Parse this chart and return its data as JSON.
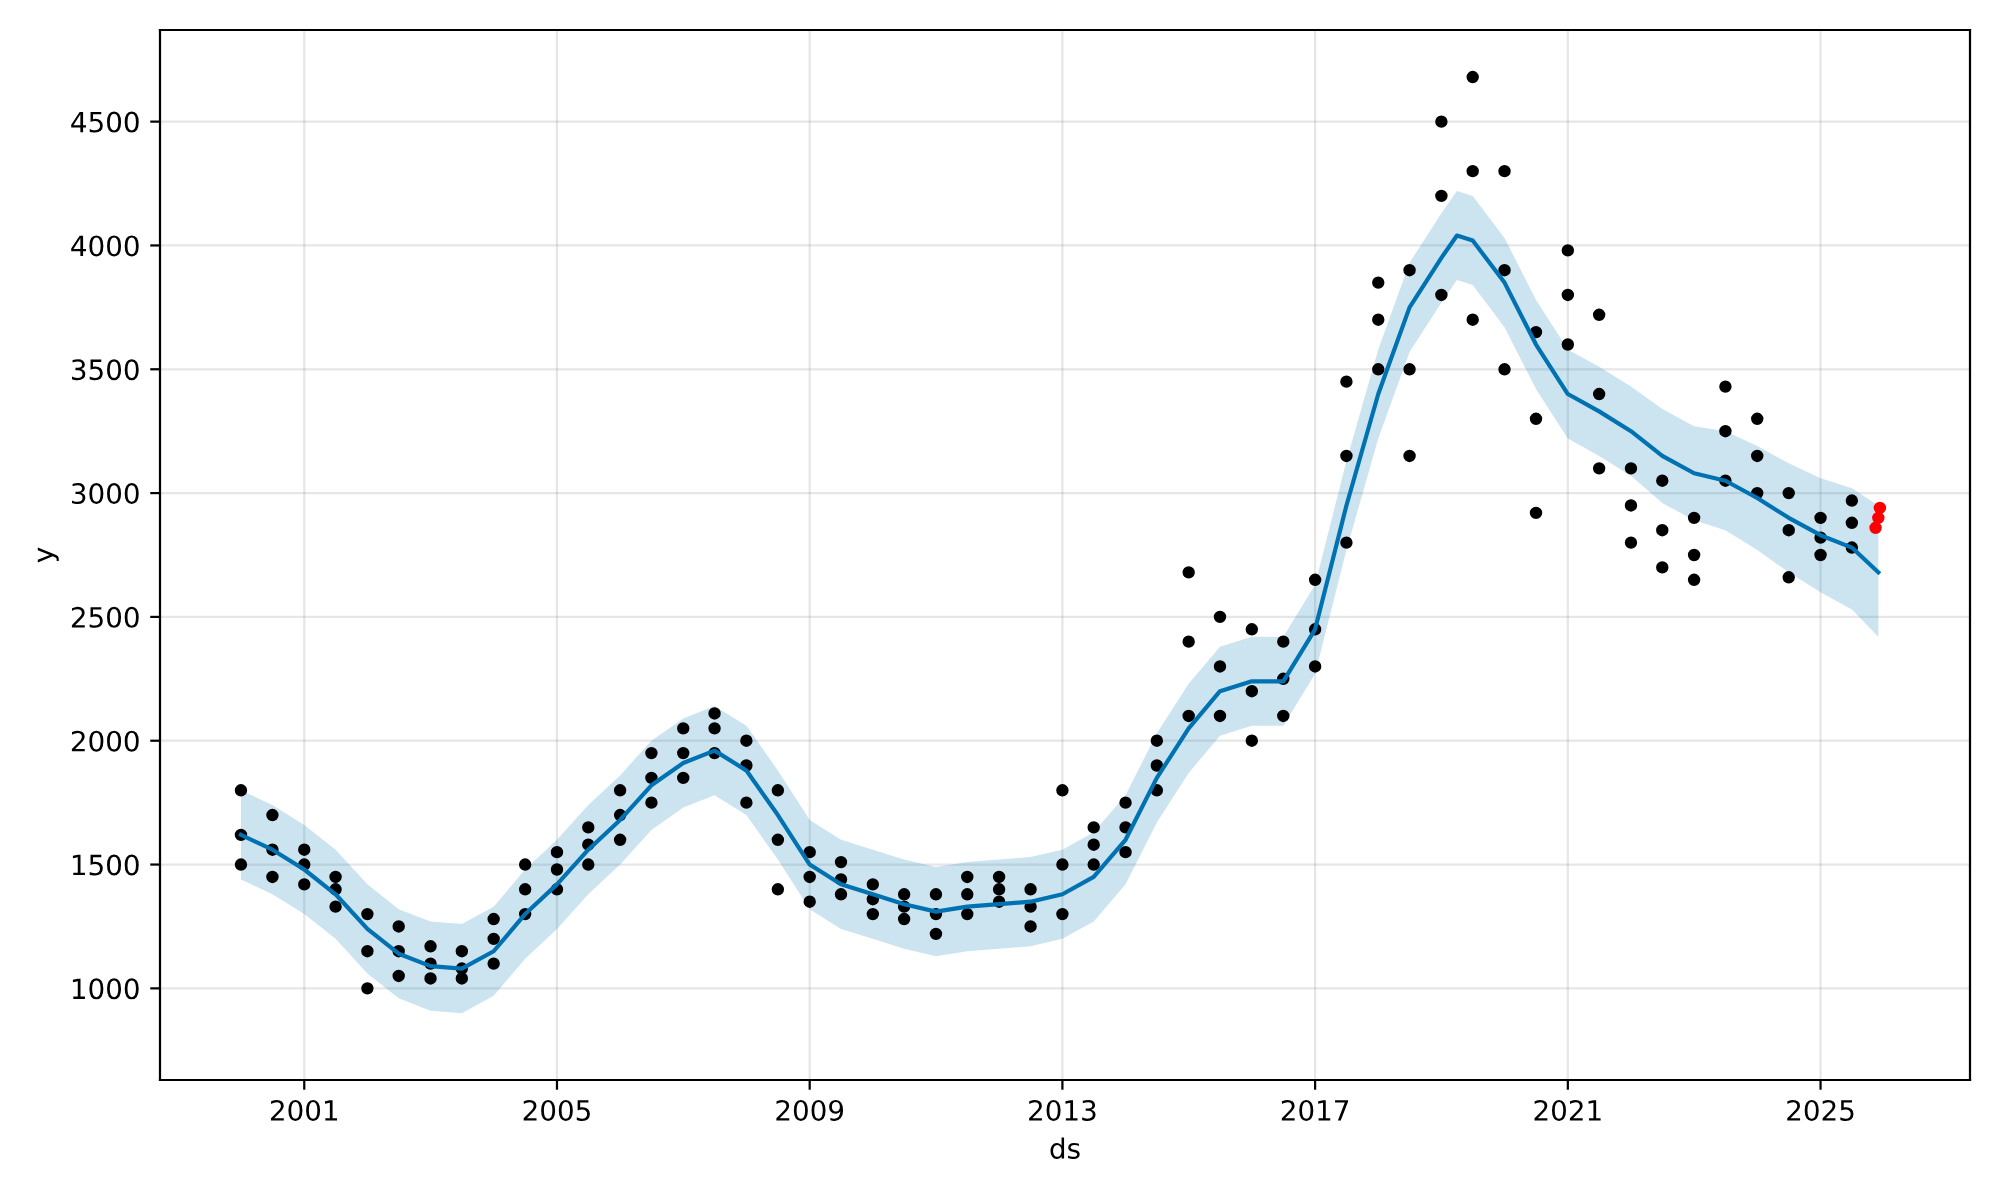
{
  "chart_data": {
    "type": "scatter",
    "xlabel": "ds",
    "ylabel": "y",
    "xlim": [
      "1998-09-20",
      "2027-05-15"
    ],
    "ylim": [
      630,
      4870
    ],
    "xticks": [
      {
        "value": "2001-01-01",
        "label": "2001"
      },
      {
        "value": "2005-01-01",
        "label": "2005"
      },
      {
        "value": "2009-01-01",
        "label": "2009"
      },
      {
        "value": "2013-01-01",
        "label": "2013"
      },
      {
        "value": "2017-01-01",
        "label": "2017"
      },
      {
        "value": "2021-01-01",
        "label": "2021"
      },
      {
        "value": "2025-01-01",
        "label": "2025"
      }
    ],
    "yticks": [
      1000,
      1500,
      2000,
      2500,
      3000,
      3500,
      4000,
      4500
    ],
    "grid": true,
    "legend": false,
    "marker": "circle",
    "series": [
      {
        "color": "#000000",
        "x": [
          "2000-01-01",
          "2000-01-01",
          "2000-01-01",
          "2000-07-01",
          "2000-07-01",
          "2000-07-01",
          "2001-01-01",
          "2001-01-01",
          "2001-01-01",
          "2001-07-01",
          "2001-07-01",
          "2001-07-01",
          "2002-01-01",
          "2002-01-01",
          "2002-01-01",
          "2002-07-01",
          "2002-07-01",
          "2002-07-01",
          "2003-01-01",
          "2003-01-01",
          "2003-01-01",
          "2003-07-01",
          "2003-07-01",
          "2003-07-01",
          "2004-01-01",
          "2004-01-01",
          "2004-01-01",
          "2004-07-01",
          "2004-07-01",
          "2004-07-01",
          "2005-01-01",
          "2005-01-01",
          "2005-01-01",
          "2005-07-01",
          "2005-07-01",
          "2005-07-01",
          "2006-01-01",
          "2006-01-01",
          "2006-01-01",
          "2006-07-01",
          "2006-07-01",
          "2006-07-01",
          "2007-01-01",
          "2007-01-01",
          "2007-01-01",
          "2007-07-01",
          "2007-07-01",
          "2007-07-01",
          "2008-01-01",
          "2008-01-01",
          "2008-01-01",
          "2008-07-01",
          "2008-07-01",
          "2008-07-01",
          "2009-01-01",
          "2009-01-01",
          "2009-01-01",
          "2009-07-01",
          "2009-07-01",
          "2009-07-01",
          "2010-01-01",
          "2010-01-01",
          "2010-01-01",
          "2010-07-01",
          "2010-07-01",
          "2010-07-01",
          "2011-01-01",
          "2011-01-01",
          "2011-01-01",
          "2011-07-01",
          "2011-07-01",
          "2011-07-01",
          "2012-01-01",
          "2012-01-01",
          "2012-01-01",
          "2012-07-01",
          "2012-07-01",
          "2012-07-01",
          "2013-01-01",
          "2013-01-01",
          "2013-01-01",
          "2013-07-01",
          "2013-07-01",
          "2013-07-01",
          "2014-01-01",
          "2014-01-01",
          "2014-01-01",
          "2014-07-01",
          "2014-07-01",
          "2014-07-01",
          "2015-01-01",
          "2015-01-01",
          "2015-01-01",
          "2015-07-01",
          "2015-07-01",
          "2015-07-01",
          "2016-01-01",
          "2016-01-01",
          "2016-01-01",
          "2016-07-01",
          "2016-07-01",
          "2016-07-01",
          "2017-01-01",
          "2017-01-01",
          "2017-01-01",
          "2017-07-01",
          "2017-07-01",
          "2017-07-01",
          "2018-01-01",
          "2018-01-01",
          "2018-01-01",
          "2018-07-01",
          "2018-07-01",
          "2018-07-01",
          "2019-01-01",
          "2019-01-01",
          "2019-01-01",
          "2019-07-01",
          "2019-07-01",
          "2019-07-01",
          "2020-01-01",
          "2020-01-01",
          "2020-01-01",
          "2020-07-01",
          "2020-07-01",
          "2020-07-01",
          "2021-01-01",
          "2021-01-01",
          "2021-01-01",
          "2021-07-01",
          "2021-07-01",
          "2021-07-01",
          "2022-01-01",
          "2022-01-01",
          "2022-01-01",
          "2022-07-01",
          "2022-07-01",
          "2022-07-01",
          "2023-01-01",
          "2023-01-01",
          "2023-01-01",
          "2023-07-01",
          "2023-07-01",
          "2023-07-01",
          "2024-01-01",
          "2024-01-01",
          "2024-01-01",
          "2024-07-01",
          "2024-07-01",
          "2024-07-01",
          "2025-01-01",
          "2025-01-01",
          "2025-01-01",
          "2025-07-01",
          "2025-07-01",
          "2025-07-01"
        ],
        "values": [
          1500,
          1620,
          1800,
          1450,
          1560,
          1700,
          1420,
          1500,
          1560,
          1330,
          1400,
          1450,
          1000,
          1150,
          1300,
          1050,
          1150,
          1250,
          1040,
          1100,
          1170,
          1040,
          1080,
          1150,
          1100,
          1200,
          1280,
          1300,
          1400,
          1500,
          1400,
          1480,
          1550,
          1500,
          1580,
          1650,
          1600,
          1700,
          1800,
          1750,
          1850,
          1950,
          1850,
          1950,
          2050,
          1950,
          2050,
          2110,
          1750,
          1900,
          2000,
          1400,
          1600,
          1800,
          1350,
          1450,
          1550,
          1380,
          1440,
          1510,
          1300,
          1360,
          1420,
          1280,
          1330,
          1380,
          1220,
          1300,
          1380,
          1300,
          1380,
          1450,
          1350,
          1400,
          1450,
          1250,
          1330,
          1400,
          1300,
          1500,
          1800,
          1500,
          1580,
          1650,
          1550,
          1650,
          1750,
          1800,
          1900,
          2000,
          2100,
          2400,
          2680,
          2100,
          2300,
          2500,
          2000,
          2200,
          2450,
          2100,
          2250,
          2400,
          2300,
          2450,
          2650,
          2800,
          3150,
          3450,
          3500,
          3700,
          3850,
          3150,
          3500,
          3900,
          3800,
          4200,
          4500,
          3700,
          4300,
          4680,
          3500,
          3900,
          4300,
          2920,
          3300,
          3650,
          3600,
          3800,
          3980,
          3100,
          3400,
          3720,
          2800,
          2950,
          3100,
          2700,
          2850,
          3050,
          2650,
          2750,
          2900,
          3050,
          3250,
          3430,
          3000,
          3150,
          3300,
          2660,
          2850,
          3000,
          2750,
          2820,
          2900,
          2780,
          2880,
          2970
        ]
      },
      {
        "type": "line",
        "color": "#0072b2",
        "marker": "none",
        "line_style": "solid",
        "x": [
          "2000-01-01",
          "2000-07-01",
          "2001-01-01",
          "2001-07-01",
          "2002-01-01",
          "2002-07-01",
          "2003-01-01",
          "2003-07-01",
          "2004-01-01",
          "2004-07-01",
          "2005-01-01",
          "2005-07-01",
          "2006-01-01",
          "2006-07-01",
          "2007-01-01",
          "2007-07-01",
          "2008-01-01",
          "2008-07-01",
          "2009-01-01",
          "2009-07-01",
          "2010-01-01",
          "2010-07-01",
          "2011-01-01",
          "2011-07-01",
          "2012-01-01",
          "2012-07-01",
          "2013-01-01",
          "2013-07-01",
          "2014-01-01",
          "2014-07-01",
          "2015-01-01",
          "2015-07-01",
          "2016-01-01",
          "2016-07-01",
          "2017-01-01",
          "2017-07-01",
          "2018-01-01",
          "2018-07-01",
          "2019-01-01",
          "2019-04-01",
          "2019-07-01",
          "2020-01-01",
          "2020-07-01",
          "2021-01-01",
          "2021-07-01",
          "2022-01-01",
          "2022-07-01",
          "2023-01-01",
          "2023-07-01",
          "2024-01-01",
          "2024-07-01",
          "2025-01-01",
          "2025-07-01",
          "2025-12-01"
        ],
        "values": [
          1620,
          1560,
          1480,
          1380,
          1240,
          1140,
          1090,
          1080,
          1150,
          1300,
          1420,
          1560,
          1680,
          1820,
          1910,
          1960,
          1880,
          1700,
          1500,
          1420,
          1380,
          1340,
          1310,
          1330,
          1340,
          1350,
          1380,
          1450,
          1600,
          1850,
          2050,
          2200,
          2240,
          2240,
          2450,
          2950,
          3400,
          3750,
          3950,
          4040,
          4020,
          3850,
          3600,
          3400,
          3330,
          3250,
          3150,
          3080,
          3050,
          2980,
          2900,
          2830,
          2780,
          2680
        ],
        "lower": [
          1440,
          1380,
          1300,
          1200,
          1060,
          960,
          910,
          900,
          970,
          1120,
          1240,
          1380,
          1500,
          1640,
          1730,
          1780,
          1700,
          1520,
          1320,
          1240,
          1200,
          1160,
          1130,
          1150,
          1160,
          1170,
          1200,
          1270,
          1420,
          1670,
          1870,
          2020,
          2060,
          2060,
          2270,
          2770,
          3220,
          3570,
          3770,
          3860,
          3840,
          3670,
          3420,
          3220,
          3150,
          3070,
          2960,
          2890,
          2850,
          2770,
          2680,
          2600,
          2530,
          2420
        ],
        "upper": [
          1800,
          1740,
          1660,
          1560,
          1420,
          1320,
          1270,
          1260,
          1330,
          1480,
          1600,
          1740,
          1860,
          2000,
          2090,
          2140,
          2060,
          1880,
          1680,
          1600,
          1560,
          1520,
          1490,
          1510,
          1520,
          1530,
          1560,
          1630,
          1780,
          2030,
          2230,
          2380,
          2420,
          2420,
          2630,
          3130,
          3580,
          3930,
          4130,
          4220,
          4200,
          4030,
          3780,
          3580,
          3510,
          3430,
          3340,
          3270,
          3250,
          3190,
          3120,
          3060,
          3020,
          2950
        ]
      },
      {
        "type": "scatter",
        "color": "#ff0000",
        "x": [
          "2025-11-15",
          "2025-12-01",
          "2025-12-10"
        ],
        "values": [
          2860,
          2900,
          2940
        ]
      }
    ]
  }
}
